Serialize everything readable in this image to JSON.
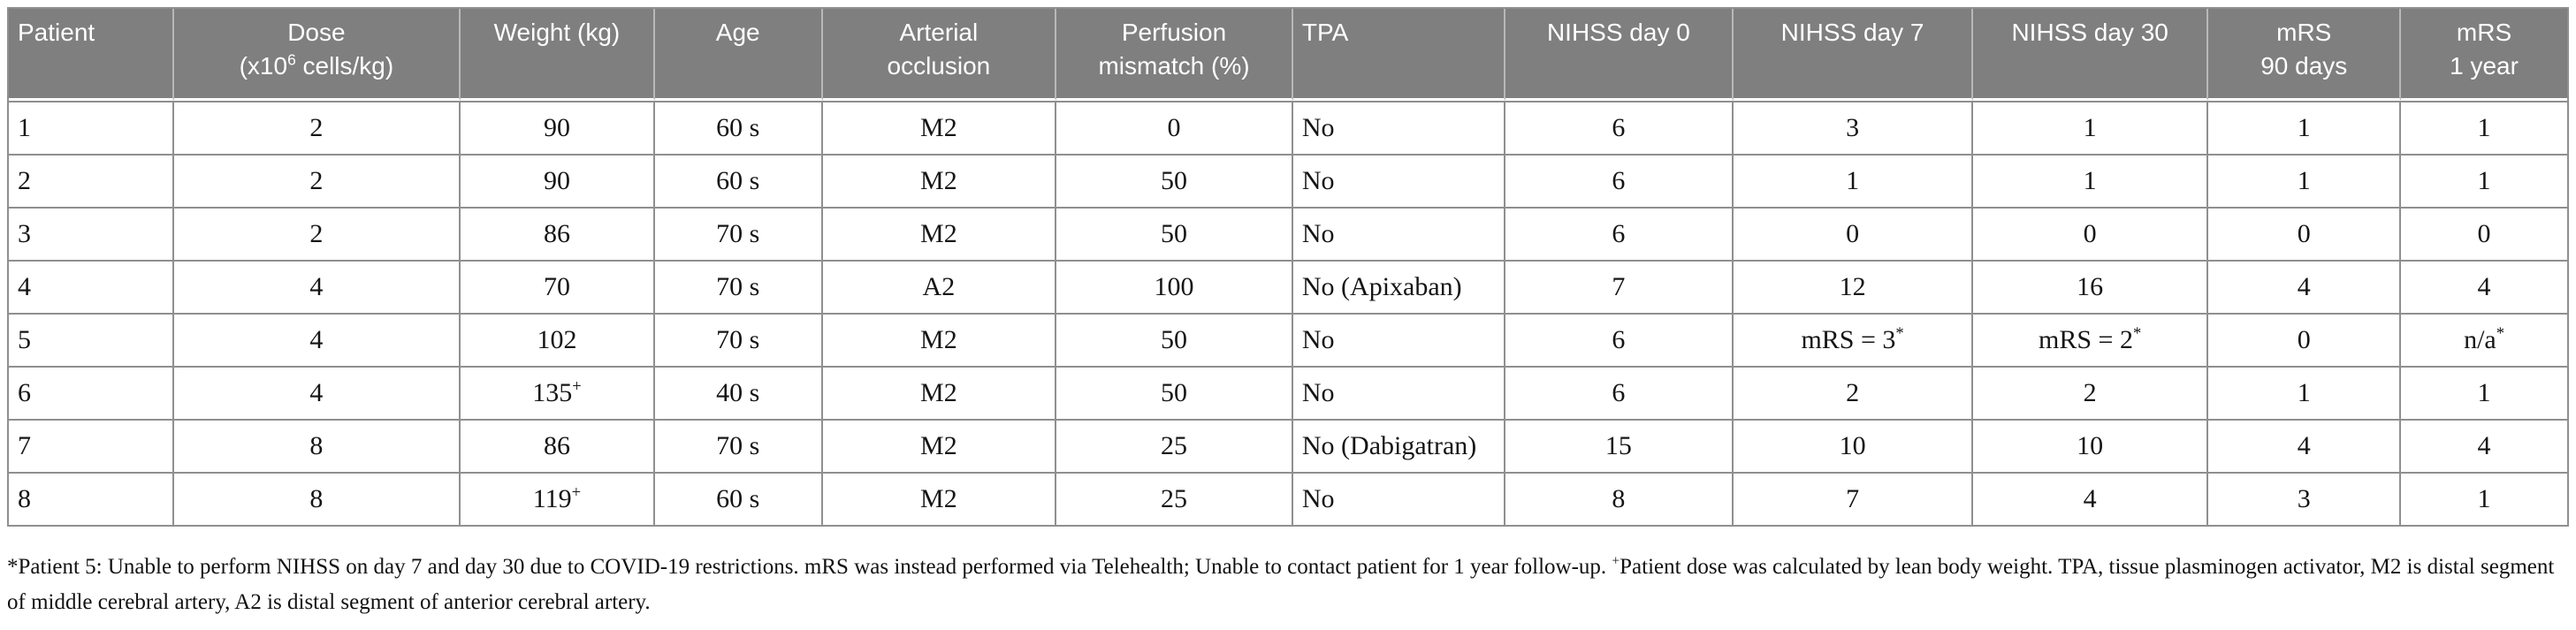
{
  "colors": {
    "header_bg": "#7f7f7f",
    "header_text": "#ffffff",
    "header_separator": "#b8b8b8",
    "border": "#8f8f8f",
    "body_bg": "#ffffff",
    "body_text": "#151515"
  },
  "table": {
    "columns": [
      {
        "id": "patient",
        "align": "left",
        "label": [
          {
            "t": "Patient"
          }
        ]
      },
      {
        "id": "dose",
        "align": "center",
        "label": [
          {
            "t": "Dose"
          },
          {
            "br": true
          },
          {
            "t": "(x10"
          },
          {
            "sup": "6"
          },
          {
            "t": " cells/kg)"
          }
        ]
      },
      {
        "id": "weight",
        "align": "center",
        "label": [
          {
            "t": "Weight (kg)"
          }
        ]
      },
      {
        "id": "age",
        "align": "center",
        "label": [
          {
            "t": "Age"
          }
        ]
      },
      {
        "id": "arterial-occlusion",
        "align": "center",
        "label": [
          {
            "t": "Arterial"
          },
          {
            "br": true
          },
          {
            "t": "occlusion"
          }
        ]
      },
      {
        "id": "perfusion-mismatch",
        "align": "center",
        "label": [
          {
            "t": "Perfusion"
          },
          {
            "br": true
          },
          {
            "t": "mismatch (%)"
          }
        ]
      },
      {
        "id": "tpa",
        "align": "left",
        "label": [
          {
            "t": "TPA"
          }
        ]
      },
      {
        "id": "nihss-day-0",
        "align": "center",
        "label": [
          {
            "t": "NIHSS day 0"
          }
        ]
      },
      {
        "id": "nihss-day-7",
        "align": "center",
        "label": [
          {
            "t": "NIHSS day 7"
          }
        ]
      },
      {
        "id": "nihss-day-30",
        "align": "center",
        "label": [
          {
            "t": "NIHSS day 30"
          }
        ]
      },
      {
        "id": "mrs-90-days",
        "align": "center",
        "label": [
          {
            "t": "mRS"
          },
          {
            "br": true
          },
          {
            "t": "90 days"
          }
        ]
      },
      {
        "id": "mrs-1-year",
        "align": "center",
        "label": [
          {
            "t": "mRS"
          },
          {
            "br": true
          },
          {
            "t": "1 year"
          }
        ]
      }
    ],
    "rows": [
      [
        "1",
        "2",
        "90",
        "60 s",
        "M2",
        "0",
        "No",
        "6",
        "3",
        "1",
        "1",
        "1"
      ],
      [
        "2",
        "2",
        "90",
        "60 s",
        "M2",
        "50",
        "No",
        "6",
        "1",
        "1",
        "1",
        "1"
      ],
      [
        "3",
        "2",
        "86",
        "70 s",
        "M2",
        "50",
        "No",
        "6",
        "0",
        "0",
        "0",
        "0"
      ],
      [
        "4",
        "4",
        "70",
        "70 s",
        "A2",
        "100",
        "No (Apixaban)",
        "7",
        "12",
        "16",
        "4",
        "4"
      ],
      [
        "5",
        "4",
        "102",
        "70 s",
        "M2",
        "50",
        "No",
        "6",
        [
          {
            "t": "mRS = 3"
          },
          {
            "sup": "*"
          }
        ],
        [
          {
            "t": "mRS = 2"
          },
          {
            "sup": "*"
          }
        ],
        "0",
        [
          {
            "t": "n/a"
          },
          {
            "sup": "*"
          }
        ]
      ],
      [
        "6",
        "4",
        [
          {
            "t": "135"
          },
          {
            "sup": "+"
          }
        ],
        "40 s",
        "M2",
        "50",
        "No",
        "6",
        "2",
        "2",
        "1",
        "1"
      ],
      [
        "7",
        "8",
        "86",
        "70 s",
        "M2",
        "25",
        "No (Dabigatran)",
        "15",
        "10",
        "10",
        "4",
        "4"
      ],
      [
        "8",
        "8",
        [
          {
            "t": "119"
          },
          {
            "sup": "+"
          }
        ],
        "60 s",
        "M2",
        "25",
        "No",
        "8",
        "7",
        "4",
        "3",
        "1"
      ]
    ]
  },
  "footnote": {
    "segments": [
      {
        "t": "*Patient 5: Unable to perform NIHSS on day 7 and day 30 due to COVID-19 restrictions. mRS was instead performed via Telehealth; Unable to contact patient for 1 year follow-up. "
      },
      {
        "sup": "+"
      },
      {
        "t": "Patient dose was calculated by lean body weight. TPA, tissue plasminogen activator, M2 is distal segment of middle cerebral artery, A2 is distal segment of anterior cerebral artery."
      }
    ]
  }
}
